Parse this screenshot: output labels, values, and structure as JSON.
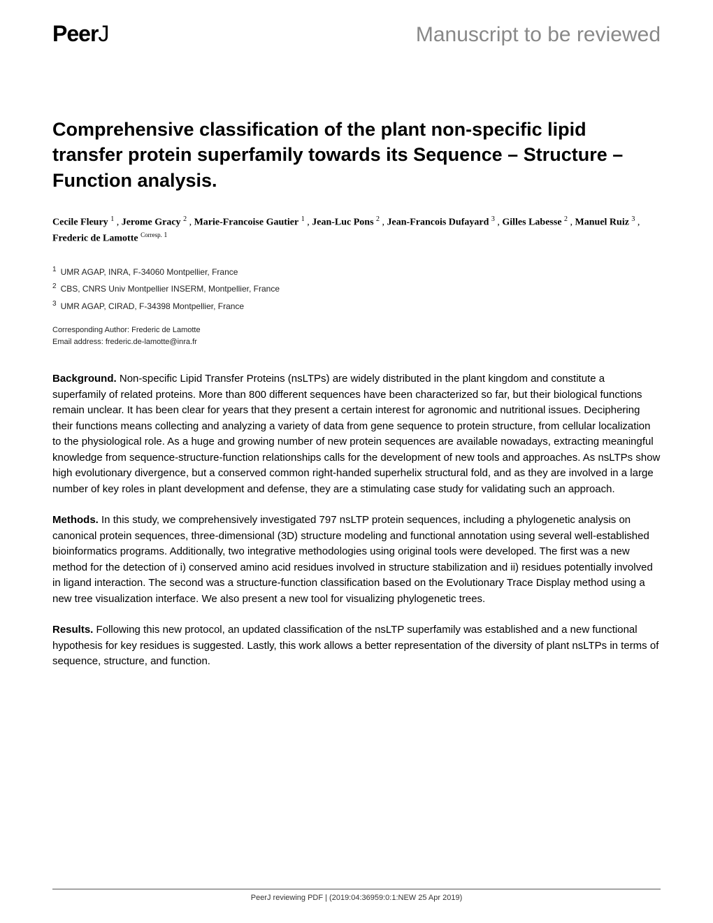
{
  "header": {
    "logo_peer": "Peer",
    "logo_j": "J",
    "review_status": "Manuscript to be reviewed"
  },
  "title": "Comprehensive classification of the plant non-specific lipid transfer protein superfamily towards its Sequence – Structure – Function analysis.",
  "authors": [
    {
      "name": "Cecile Fleury",
      "aff": "1",
      "corresp": false
    },
    {
      "name": "Jerome Gracy",
      "aff": "2",
      "corresp": false
    },
    {
      "name": "Marie-Francoise Gautier",
      "aff": "1",
      "corresp": false
    },
    {
      "name": "Jean-Luc Pons",
      "aff": "2",
      "corresp": false
    },
    {
      "name": "Jean-Francois Dufayard",
      "aff": "3",
      "corresp": false
    },
    {
      "name": "Gilles Labesse",
      "aff": "2",
      "corresp": false
    },
    {
      "name": "Manuel Ruiz",
      "aff": "3",
      "corresp": false
    },
    {
      "name": "Frederic de Lamotte",
      "aff": "1",
      "corresp": true,
      "corresp_label": "Corresp."
    }
  ],
  "affiliations": [
    {
      "num": "1",
      "text": "UMR AGAP, INRA, F-34060 Montpellier, France"
    },
    {
      "num": "2",
      "text": "CBS, CNRS Univ Montpellier INSERM, Montpellier, France"
    },
    {
      "num": "3",
      "text": "UMR AGAP, CIRAD, F-34398 Montpellier, France"
    }
  ],
  "corresponding": {
    "label": "Corresponding Author: ",
    "name": "Frederic de Lamotte",
    "email_label": "Email address: ",
    "email": "frederic.de-lamotte@inra.fr"
  },
  "abstract": {
    "background_label": "Background.",
    "background_text": " Non-specific Lipid Transfer Proteins (nsLTPs) are widely distributed in the plant kingdom and constitute a superfamily of related proteins. More than 800 different sequences have been characterized so far, but their biological functions remain unclear. It has been clear for years that they present a certain interest for agronomic and nutritional issues. Deciphering their functions means collecting and analyzing a variety of data from gene sequence to protein structure, from cellular localization to the physiological role. As a huge and growing number of new protein sequences are available nowadays, extracting meaningful knowledge from sequence-structure-function relationships calls for the development of new tools and approaches. As nsLTPs show high evolutionary divergence, but a conserved common right-handed superhelix structural fold, and as they are involved in a large number of key roles in plant development and defense, they are a stimulating case study for validating such an approach.",
    "methods_label": "Methods.",
    "methods_text": " In this study, we comprehensively investigated 797 nsLTP protein sequences, including a phylogenetic analysis on canonical protein sequences, three-dimensional (3D) structure modeling and functional annotation using several well-established bioinformatics programs. Additionally, two integrative methodologies using original tools were developed. The first was a new method for the detection of i) conserved amino acid residues involved in structure stabilization and ii) residues potentially involved in ligand interaction. The second was a structure-function classification based on the Evolutionary Trace Display method using a new tree visualization interface. We also present a new tool for visualizing phylogenetic trees.",
    "results_label": "Results.",
    "results_text": " Following this new protocol, an updated classification of the nsLTP superfamily was established and a new functional hypothesis for key residues is suggested. Lastly, this work allows a better representation of the diversity of plant nsLTPs in terms of sequence, structure, and function."
  },
  "footer": "PeerJ reviewing PDF | (2019:04:36959:0:1:NEW 25 Apr 2019)",
  "colors": {
    "text": "#000000",
    "muted": "#888888",
    "background": "#ffffff",
    "footer_border": "#555555"
  }
}
